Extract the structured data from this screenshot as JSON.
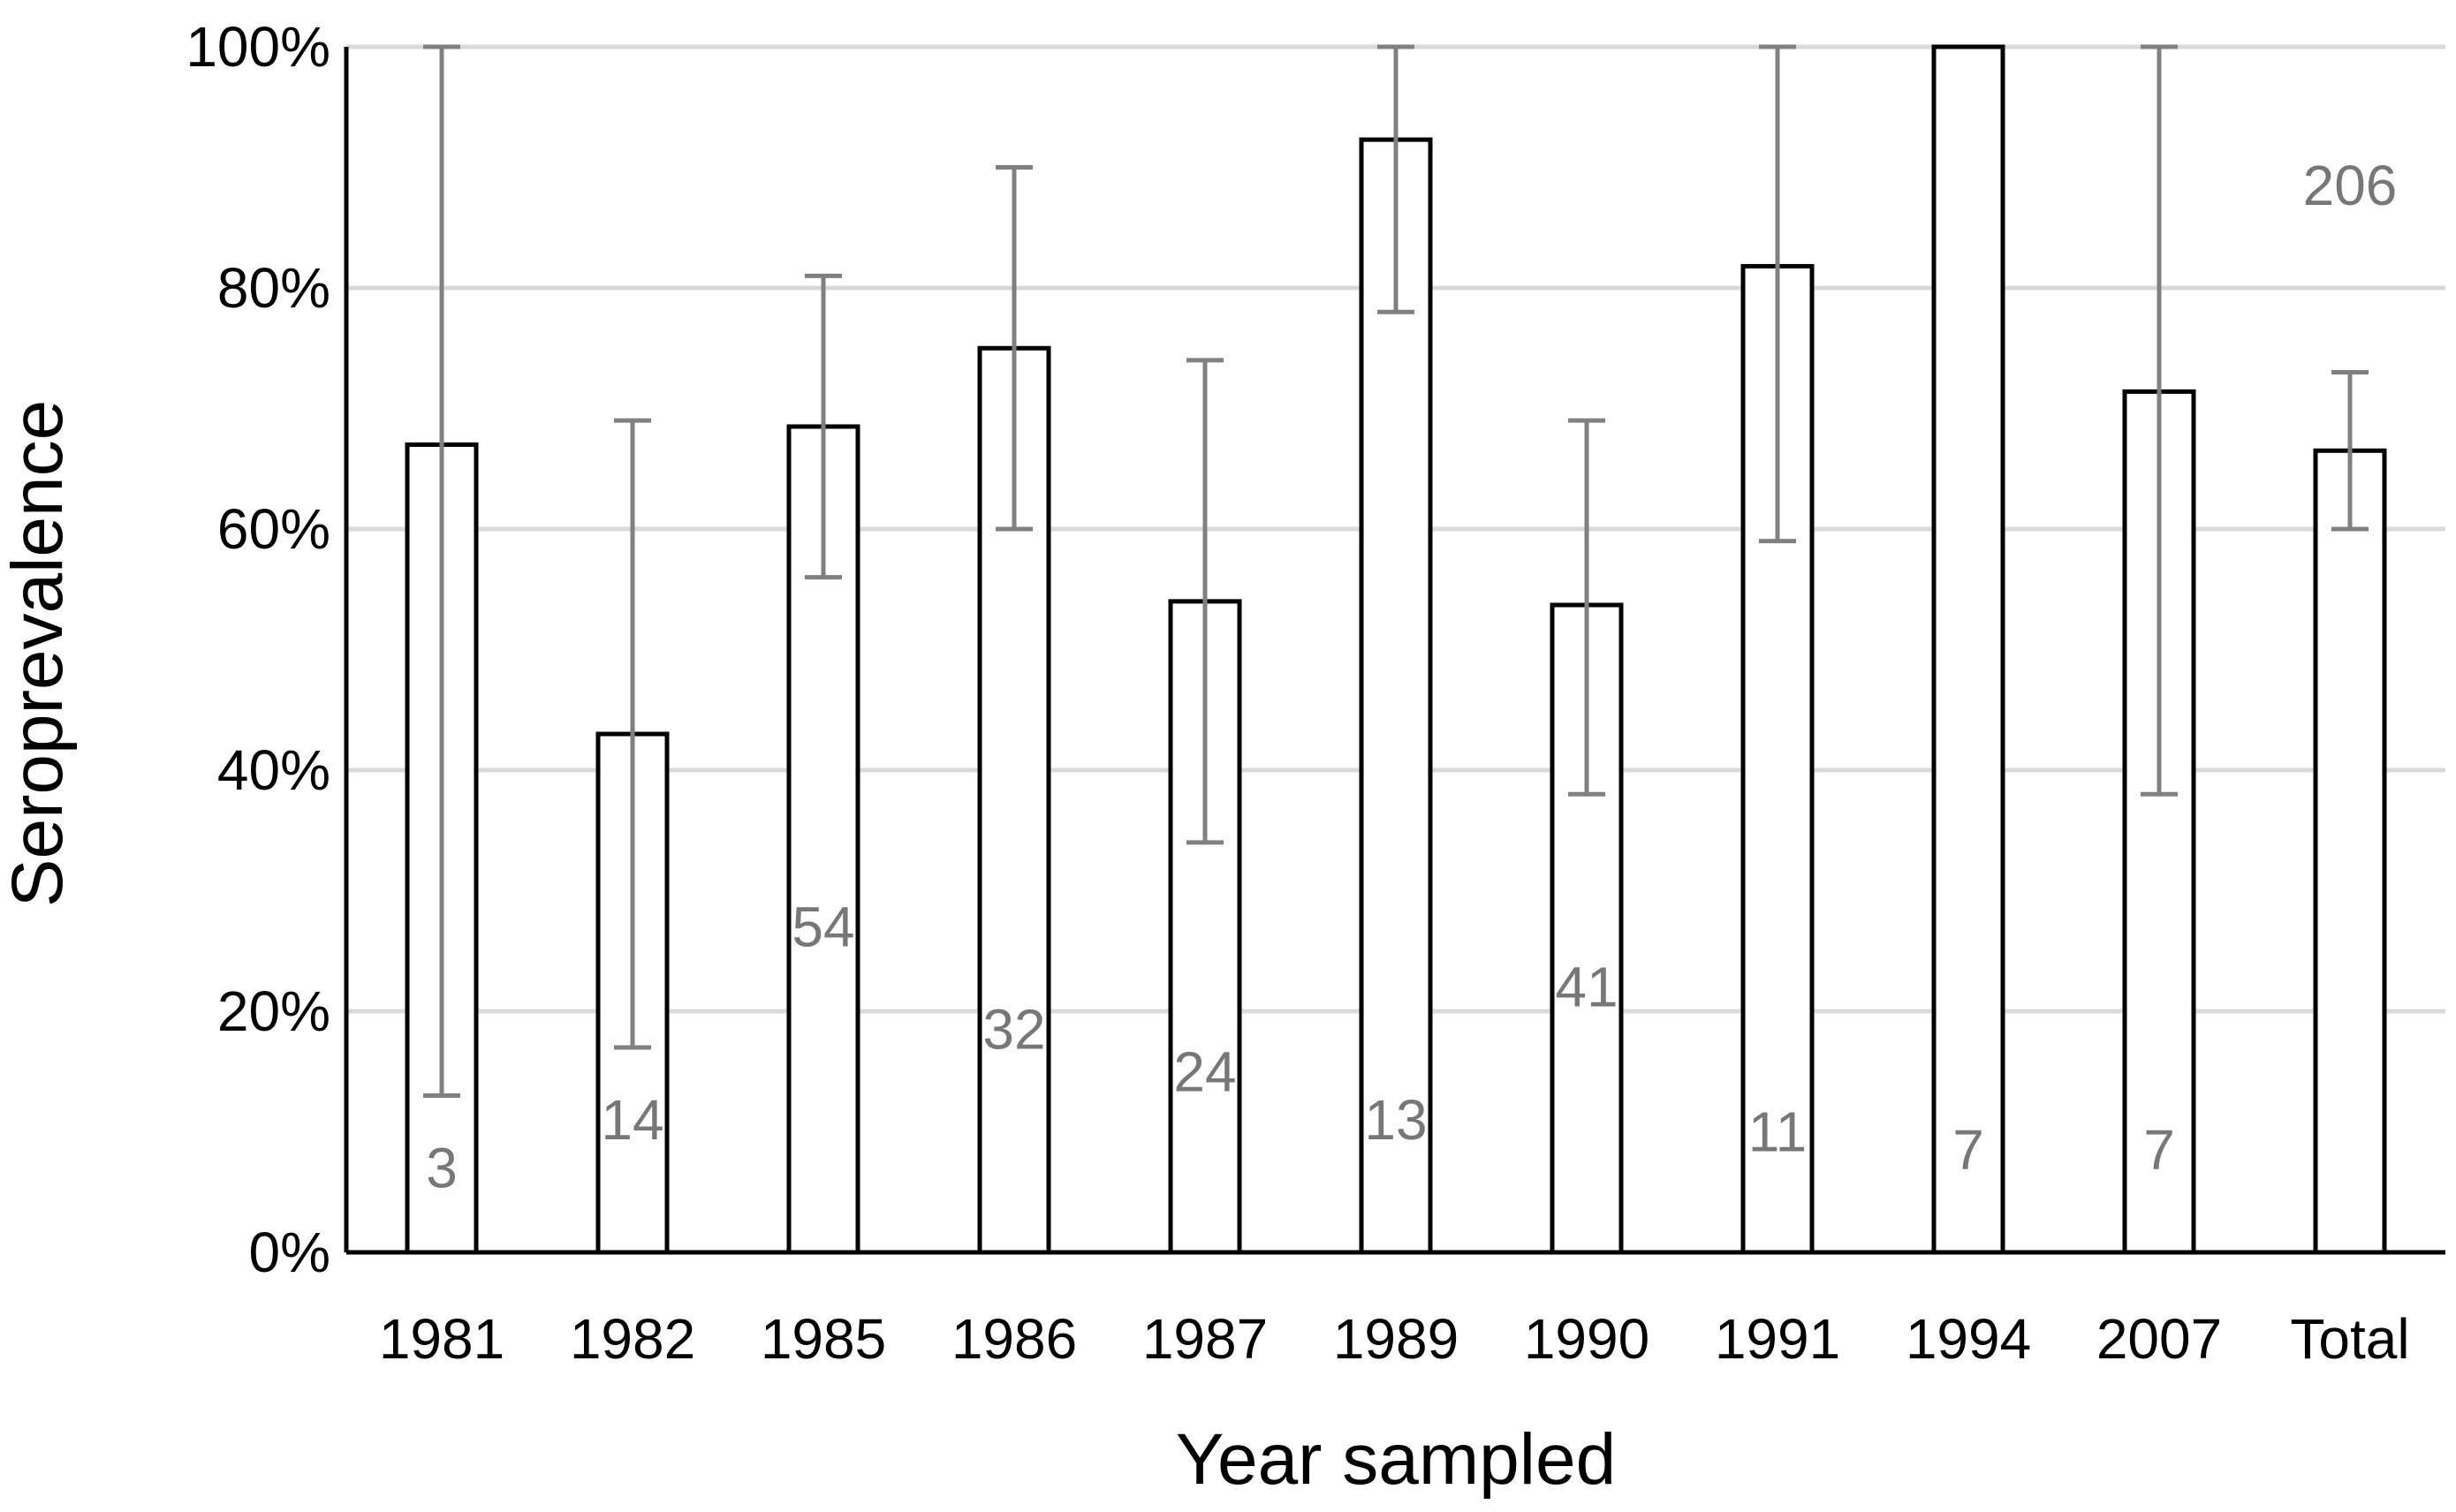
{
  "chart_data": {
    "type": "bar",
    "xlabel": "Year sampled",
    "ylabel": "Seroprevalence",
    "ylim": [
      0,
      100
    ],
    "y_unit": "%",
    "y_ticks": [
      "0%",
      "20%",
      "40%",
      "60%",
      "80%",
      "100%"
    ],
    "y_tick_values": [
      0,
      20,
      40,
      60,
      80,
      100
    ],
    "grid": "horizontal",
    "categories": [
      "1981",
      "1982",
      "1985",
      "1986",
      "1987",
      "1989",
      "1990",
      "1991",
      "1994",
      "2007",
      "Total"
    ],
    "values": [
      67,
      43,
      68.5,
      75,
      54,
      92.3,
      53.7,
      81.8,
      100,
      71.4,
      66.5
    ],
    "error_low": [
      13,
      17,
      56,
      60,
      34,
      78,
      38,
      59,
      100,
      38,
      60
    ],
    "error_high": [
      100,
      69,
      81,
      90,
      74,
      100,
      69,
      100,
      100,
      100,
      73
    ],
    "sample_sizes": [
      "3",
      "14",
      "54",
      "32",
      "24",
      "13",
      "41",
      "11",
      "7",
      "7",
      "206"
    ],
    "sample_label_positions": [
      7,
      11,
      27,
      18.5,
      15,
      11,
      22,
      10,
      8.5,
      8.5,
      88.5
    ],
    "colors": {
      "bar_fill": "#ffffff",
      "bar_edge": "#000000",
      "error_bar": "#808080",
      "grid": "#d9d9d9",
      "label": "#777777"
    }
  }
}
